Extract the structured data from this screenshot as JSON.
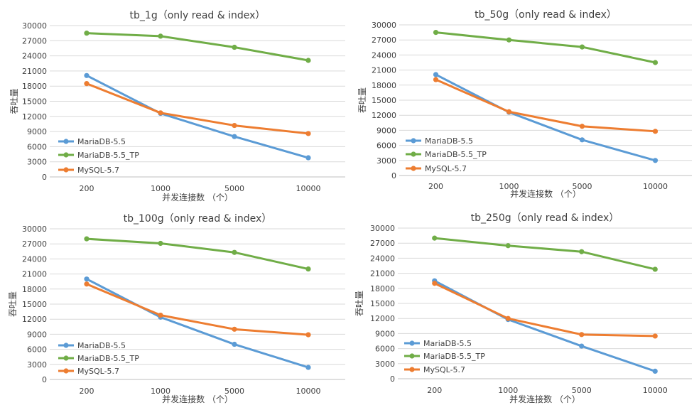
{
  "chart_data": [
    {
      "type": "line",
      "title": "tb_1g（only read &amp; index）",
      "xlabel": "并发连接数 （个）",
      "ylabel": "吞吐量",
      "categories": [
        "200",
        "1000",
        "5000",
        "10000"
      ],
      "ylim": [
        0,
        30000
      ],
      "yticks": [
        0,
        3000,
        6000,
        9000,
        12000,
        15000,
        18000,
        21000,
        24000,
        27000,
        30000
      ],
      "grid": true,
      "legend": "left",
      "series": [
        {
          "name": "MariaDB-5.5",
          "color": "#5B9BD5",
          "values": [
            20100,
            12600,
            8000,
            3800
          ]
        },
        {
          "name": "MariaDB-5.5_TP",
          "color": "#70AD47",
          "values": [
            28500,
            27900,
            25700,
            23100
          ]
        },
        {
          "name": "MySQL-5.7",
          "color": "#ED7D31",
          "values": [
            18500,
            12700,
            10200,
            8600
          ]
        }
      ]
    },
    {
      "type": "line",
      "title": "tb_50g（only read &amp; index）",
      "xlabel": "并发连接数 （个）",
      "ylabel": "吞吐量",
      "categories": [
        "200",
        "1000",
        "5000",
        "10000"
      ],
      "ylim": [
        0,
        30000
      ],
      "yticks": [
        0,
        3000,
        6000,
        9000,
        12000,
        15000,
        18000,
        21000,
        24000,
        27000,
        30000
      ],
      "grid": true,
      "legend": "left",
      "series": [
        {
          "name": "MariaDB-5.5",
          "color": "#5B9BD5",
          "values": [
            20100,
            12600,
            7100,
            3000
          ]
        },
        {
          "name": "MariaDB-5.5_TP",
          "color": "#70AD47",
          "values": [
            28500,
            27000,
            25600,
            22500
          ]
        },
        {
          "name": "MySQL-5.7",
          "color": "#ED7D31",
          "values": [
            19100,
            12700,
            9800,
            8800
          ]
        }
      ]
    },
    {
      "type": "line",
      "title": "tb_100g（only read &amp; index）",
      "xlabel": "并发连接数 （个）",
      "ylabel": "吞吐量",
      "categories": [
        "200",
        "1000",
        "5000",
        "10000"
      ],
      "ylim": [
        0,
        30000
      ],
      "yticks": [
        0,
        3000,
        6000,
        9000,
        12000,
        15000,
        18000,
        21000,
        24000,
        27000,
        30000
      ],
      "grid": true,
      "legend": "left",
      "series": [
        {
          "name": "MariaDB-5.5",
          "color": "#5B9BD5",
          "values": [
            20000,
            12400,
            7000,
            2400
          ]
        },
        {
          "name": "MariaDB-5.5_TP",
          "color": "#70AD47",
          "values": [
            28000,
            27100,
            25300,
            22000
          ]
        },
        {
          "name": "MySQL-5.7",
          "color": "#ED7D31",
          "values": [
            19000,
            12800,
            10000,
            8900
          ]
        }
      ]
    },
    {
      "type": "line",
      "title": "tb_250g（only read &amp; index）",
      "xlabel": "并发连接数 （个）",
      "ylabel": "吞吐量",
      "categories": [
        "200",
        "1000",
        "5000",
        "10000"
      ],
      "ylim": [
        0,
        30000
      ],
      "yticks": [
        0,
        3000,
        6000,
        9000,
        12000,
        15000,
        18000,
        21000,
        24000,
        27000,
        30000
      ],
      "grid": true,
      "legend": "left",
      "series": [
        {
          "name": "MariaDB-5.5",
          "color": "#5B9BD5",
          "values": [
            19500,
            11800,
            6500,
            1500
          ]
        },
        {
          "name": "MariaDB-5.5_TP",
          "color": "#70AD47",
          "values": [
            28000,
            26500,
            25300,
            21800
          ]
        },
        {
          "name": "MySQL-5.7",
          "color": "#ED7D31",
          "values": [
            19000,
            12000,
            8800,
            8500
          ]
        }
      ]
    }
  ]
}
